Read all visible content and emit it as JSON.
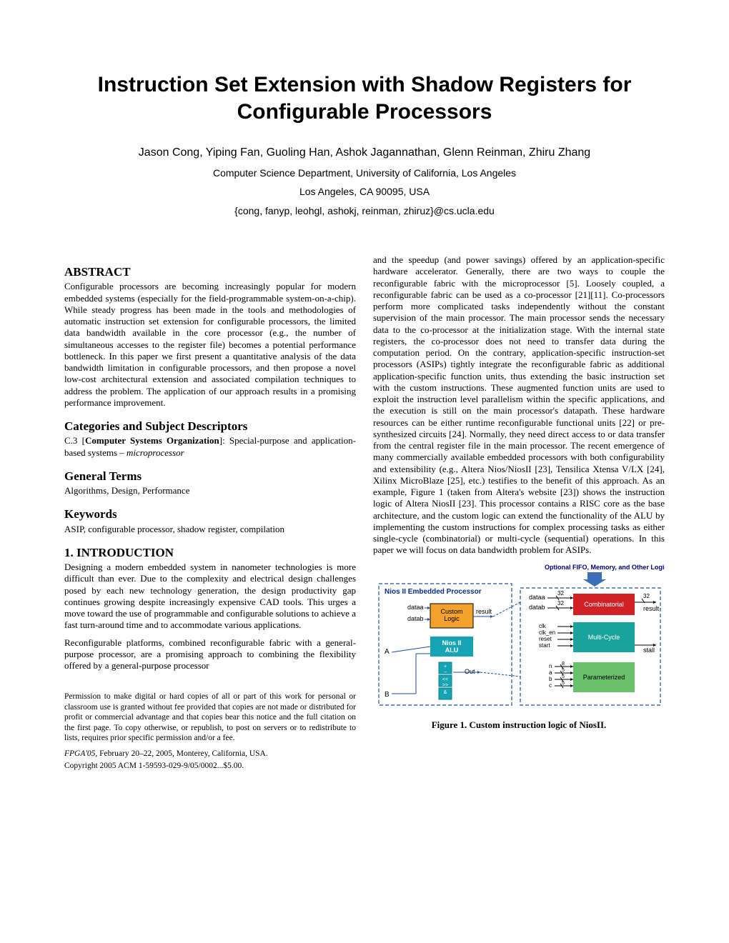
{
  "title": "Instruction Set Extension with Shadow Registers for Configurable Processors",
  "authors": "Jason Cong, Yiping Fan, Guoling Han, Ashok Jagannathan, Glenn Reinman, Zhiru Zhang",
  "affiliation_line1": "Computer Science Department, University of California, Los Angeles",
  "affiliation_line2": "Los Angeles, CA 90095, USA",
  "affiliation_line3": "{cong, fanyp, leohgl, ashokj, reinman, zhiruz}@cs.ucla.edu",
  "left": {
    "abstract_h": "ABSTRACT",
    "abstract": "Configurable processors are becoming increasingly popular for modern embedded systems (especially for the field-programmable system-on-a-chip). While steady progress has been made in the tools and methodologies of automatic instruction set extension for configurable processors, the limited data bandwidth available in the core processor (e.g., the number of simultaneous accesses to the register file) becomes a potential performance bottleneck. In this paper we first present a quantitative analysis of the data bandwidth limitation in configurable processors, and then propose a novel low-cost architectural extension and associated compilation techniques to address the problem. The application of our approach results in a promising performance improvement.",
    "cats_h": "Categories and Subject Descriptors",
    "cats_prefix": "C.3 [",
    "cats_bold": "Computer Systems Organization",
    "cats_suffix": "]: Special-purpose and application-based systems – ",
    "cats_italic": "microprocessor",
    "general_h": "General Terms",
    "general": "Algorithms, Design, Performance",
    "keywords_h": "Keywords",
    "keywords": "ASIP, configurable processor, shadow register, compilation",
    "intro_h": "1.  INTRODUCTION",
    "intro_p1": "Designing a modern embedded system in nanometer technologies is more difficult than ever. Due to the complexity and electrical design challenges posed by each new technology generation, the design productivity gap continues growing despite increasingly expensive CAD tools. This urges a move toward the use of programmable and configurable solutions to achieve a fast turn-around time and to accommodate various applications.",
    "intro_p2": "Reconfigurable platforms, combined reconfigurable fabric with a general-purpose processor, are a promising approach to combining the flexibility offered by a general-purpose processor",
    "permission": "Permission to make digital or hard copies of all or part of this work for personal or classroom use is granted without fee provided that copies are not made or distributed for profit or commercial advantage and that copies bear this notice and the full citation on the first page. To copy otherwise, or republish, to post on servers or to redistribute to lists, requires prior specific permission and/or a fee.",
    "conf_italic": "FPGA'05,",
    "conf_rest": " February 20–22, 2005, Monterey, California, USA.",
    "copyright": "Copyright 2005 ACM 1-59593-029-9/05/0002...$5.00."
  },
  "right": {
    "p1": "and the speedup (and power savings) offered by an application-specific hardware accelerator. Generally, there are two ways to couple the reconfigurable fabric with the microprocessor [5]. Loosely coupled, a reconfigurable fabric can be used as a co-processor [21][11]. Co-processors perform more complicated tasks independently without the constant supervision of the main processor. The main processor sends the necessary data to the co-processor at the initialization stage. With the internal state registers, the co-processor does not need to transfer data during the computation period. On the contrary, application-specific instruction-set processors (ASIPs) tightly integrate the reconfigurable fabric as additional application-specific function units, thus extending the basic instruction set with the custom instructions. These augmented function units are used to exploit the instruction level parallelism within the specific applications, and the execution is still on the main processor's datapath. These hardware resources can be either runtime reconfigurable functional units [22] or pre-synthesized circuits [24]. Normally, they need direct access to or data transfer from the central register file in the main processor. The recent emergence of many commercially available embedded processors with both configurability and extensibility (e.g., Altera Nios/NiosII [23], Tensilica Xtensa V/LX [24], Xilinx MicroBlaze [25], etc.) testifies to the benefit of this approach. As an example, Figure 1 (taken from Altera's website [23]) shows the instruction logic of Altera NiosII [23]. This processor contains a RISC core as the base architecture, and the custom logic can extend the functionality of the ALU by implementing the custom instructions for complex processing tasks as either single-cycle (combinatorial) or multi-cycle (sequential) operations. In this paper we will focus on data bandwidth problem for ASIPs.",
    "fig_caption": "Figure 1. Custom instruction logic of NiosII."
  },
  "figure": {
    "type": "diagram",
    "background": "#ffffff",
    "dash_color": "#1b4fa0",
    "proc_box_title": "Nios II Embedded Processor",
    "proc_title_color": "#0a2f8a",
    "custom_logic_label": "Custom\nLogic",
    "custom_logic_fill": "#f5a22c",
    "custom_logic_text": "#000000",
    "alu_label": "Nios II\nALU",
    "alu_fill": "#16a3b3",
    "alu_text": "#ffffff",
    "combinatorial_label": "Combinatorial",
    "combinatorial_fill": "#d22027",
    "multicycle_label": "Multi-Cycle",
    "multicycle_fill": "#1aa39a",
    "parameterized_label": "Parameterized",
    "parameterized_fill": "#6ac06d",
    "right_label_color": "#000000",
    "top_label": "Optional FIFO, Memory, and Other Logic",
    "top_label_color": "#000080",
    "arrow_fill": "#3b6db8",
    "signals_left": [
      "dataa",
      "datab"
    ],
    "signal_result": "result",
    "signals_a_b": [
      "A",
      "B"
    ],
    "out_label": "Out",
    "right_inputs_top": [
      "dataa",
      "datab"
    ],
    "right_bus_labels": [
      "32",
      "32",
      "32"
    ],
    "right_mc_signals": [
      "clk",
      "clk_en",
      "reset",
      "start"
    ],
    "right_mc_out": [
      "result",
      "stall"
    ],
    "right_param_signals": [
      "n",
      "a",
      "b",
      "c"
    ],
    "right_param_widths": [
      "8",
      "5",
      "5",
      "5"
    ],
    "alu_op_labels": [
      "+\n−",
      "<<\n>>",
      "&"
    ],
    "line_color": "#1b4fa0",
    "label_font_size": 9
  }
}
